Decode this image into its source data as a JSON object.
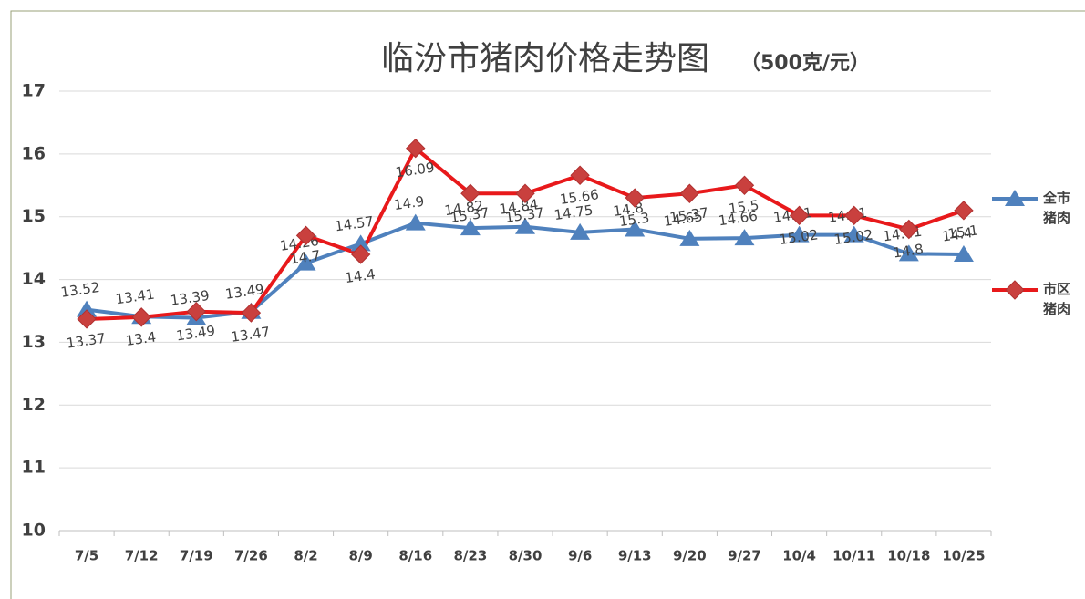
{
  "chart_data": {
    "type": "line",
    "title": "临汾市猪肉价格走势图",
    "subtitle": "（500克/元）",
    "categories": [
      "7/5",
      "7/12",
      "7/19",
      "7/26",
      "8/2",
      "8/9",
      "8/16",
      "8/23",
      "8/30",
      "9/6",
      "9/13",
      "9/20",
      "9/27",
      "10/4",
      "10/11",
      "10/18",
      "10/25"
    ],
    "series": [
      {
        "name": "全市猪肉",
        "color": "#4f81bd",
        "marker": "triangle",
        "values": [
          13.52,
          13.41,
          13.39,
          13.49,
          14.26,
          14.57,
          14.9,
          14.82,
          14.84,
          14.75,
          14.8,
          14.65,
          14.66,
          14.71,
          14.71,
          14.41,
          14.4
        ]
      },
      {
        "name": "市区猪肉",
        "color": "#e8191b",
        "marker": "diamond",
        "values": [
          13.37,
          13.4,
          13.49,
          13.47,
          14.7,
          14.4,
          16.09,
          15.37,
          15.37,
          15.66,
          15.3,
          15.37,
          15.5,
          15.02,
          15.02,
          14.8,
          15.1
        ]
      }
    ],
    "ylim": [
      10,
      17
    ],
    "yticks": [
      10,
      11,
      12,
      13,
      14,
      15,
      16,
      17
    ],
    "grid": true,
    "legend": "right"
  }
}
